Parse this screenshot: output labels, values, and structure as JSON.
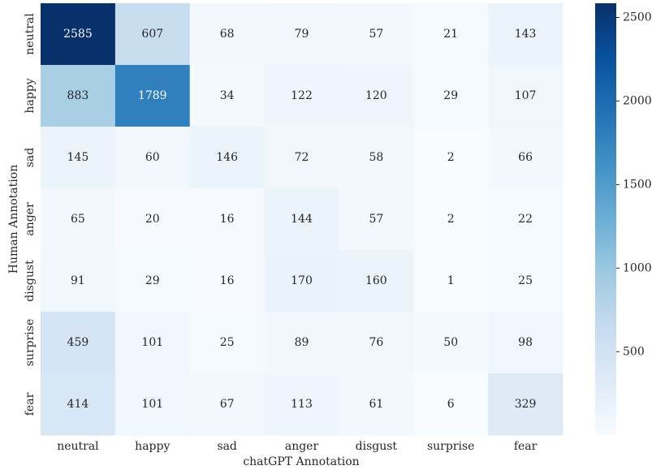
{
  "chart_data": {
    "type": "heatmap",
    "x_categories": [
      "neutral",
      "happy",
      "sad",
      "anger",
      "disgust",
      "surprise",
      "fear"
    ],
    "y_categories": [
      "neutral",
      "happy",
      "sad",
      "anger",
      "disgust",
      "surprise",
      "fear"
    ],
    "values": [
      [
        2585,
        607,
        68,
        79,
        57,
        21,
        143
      ],
      [
        883,
        1789,
        34,
        122,
        120,
        29,
        107
      ],
      [
        145,
        60,
        146,
        72,
        58,
        2,
        66
      ],
      [
        65,
        20,
        16,
        144,
        57,
        2,
        22
      ],
      [
        91,
        29,
        16,
        170,
        160,
        1,
        25
      ],
      [
        459,
        101,
        25,
        89,
        76,
        50,
        98
      ],
      [
        414,
        101,
        67,
        113,
        61,
        6,
        329
      ]
    ],
    "xlabel": "chatGPT Annotation",
    "ylabel": "Human Annotation",
    "colormap": "Blues",
    "zlim": [
      1,
      2585
    ],
    "zticks": [
      500,
      1000,
      1500,
      2000,
      2500
    ]
  }
}
